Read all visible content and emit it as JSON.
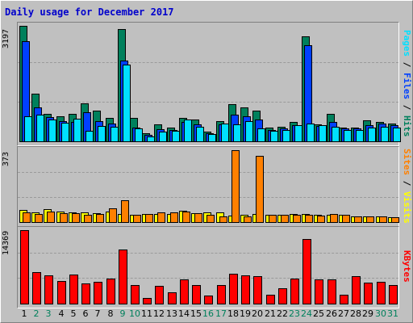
{
  "title": "Daily usage for December 2017",
  "colors": {
    "hits": "#00805c",
    "files": "#0040ff",
    "pages": "#00e0ff",
    "visits": "#ffff00",
    "sites": "#ff8000",
    "kbytes": "#ff0000",
    "weekday_label": "#000000",
    "weekend_label": "#00805c"
  },
  "panels": {
    "top": {
      "max_label": "3197",
      "legend": [
        {
          "text": "Pages",
          "color": "#00e0ff"
        },
        {
          "text": "Files",
          "color": "#0040ff"
        },
        {
          "text": "Hits",
          "color": "#00805c"
        }
      ]
    },
    "mid": {
      "max_label": "373",
      "legend": [
        {
          "text": "Sites",
          "color": "#ff8000"
        },
        {
          "text": "Visits",
          "color": "#ffff00"
        }
      ]
    },
    "bot": {
      "max_label": "14369",
      "legend": [
        {
          "text": "KBytes",
          "color": "#ff0000"
        }
      ]
    }
  },
  "chart_data": {
    "type": "bar",
    "title": "Daily usage for December 2017",
    "categories": [
      "1",
      "2",
      "3",
      "4",
      "5",
      "6",
      "7",
      "8",
      "9",
      "10",
      "11",
      "12",
      "13",
      "14",
      "15",
      "16",
      "17",
      "18",
      "19",
      "20",
      "21",
      "22",
      "23",
      "24",
      "25",
      "26",
      "27",
      "28",
      "29",
      "30",
      "31"
    ],
    "weekend_days": [
      "2",
      "3",
      "9",
      "10",
      "16",
      "17",
      "23",
      "24",
      "30",
      "31"
    ],
    "panels": [
      {
        "name": "top",
        "ymax": 3197,
        "series": [
          {
            "name": "Hits",
            "values": [
              3197,
              1343,
              778,
              702,
              778,
              1065,
              860,
              662,
              3111,
              662,
              235,
              492,
              400,
              662,
              630,
              290,
              585,
              1038,
              951,
              860,
              400,
              432,
              550,
              2900,
              478,
              778,
              410,
              400,
              590,
              550,
              520
            ]
          },
          {
            "name": "Files",
            "values": [
              2780,
              950,
              690,
              580,
              560,
              830,
              580,
              520,
              2250,
              410,
              200,
              350,
              330,
              560,
              490,
              250,
              490,
              760,
              720,
              630,
              330,
              380,
              470,
              2660,
              450,
              560,
              370,
              380,
              470,
              500,
              470
            ]
          },
          {
            "name": "Pages",
            "values": [
              720,
              760,
              630,
              530,
              650,
              320,
              440,
              430,
              2130,
              380,
              150,
              280,
              310,
              630,
              430,
              230,
              510,
              480,
              570,
              380,
              320,
              330,
              470,
              500,
              470,
              430,
              330,
              330,
              410,
              430,
              410
            ]
          }
        ]
      },
      {
        "name": "mid",
        "ymax": 373,
        "series": [
          {
            "name": "Visits",
            "values": [
              65,
              52,
              70,
              56,
              55,
              52,
              50,
              57,
              47,
              40,
              44,
              45,
              47,
              62,
              48,
              53,
              52,
              38,
              40,
              47,
              40,
              40,
              45,
              45,
              40,
              40,
              40,
              35,
              32,
              32,
              30
            ]
          },
          {
            "name": "Sites",
            "values": [
              52,
              47,
              56,
              48,
              50,
              42,
              45,
              75,
              115,
              42,
              45,
              55,
              55,
              58,
              48,
              40,
              35,
              373,
              35,
              345,
              40,
              42,
              43,
              42,
              38,
              45,
              40,
              35,
              32,
              32,
              30
            ]
          }
        ]
      },
      {
        "name": "bot",
        "ymax": 14369,
        "series": [
          {
            "name": "KBytes",
            "values": [
              14369,
              6200,
              5600,
              4500,
              5800,
              4000,
              4400,
              5000,
              10600,
              3800,
              1300,
              3600,
              2400,
              4800,
              3700,
              1700,
              3800,
              6000,
              5600,
              5400,
              1900,
              3100,
              5000,
              12600,
              4800,
              4800,
              1800,
              5400,
              4200,
              4300,
              3700
            ]
          }
        ]
      }
    ]
  }
}
